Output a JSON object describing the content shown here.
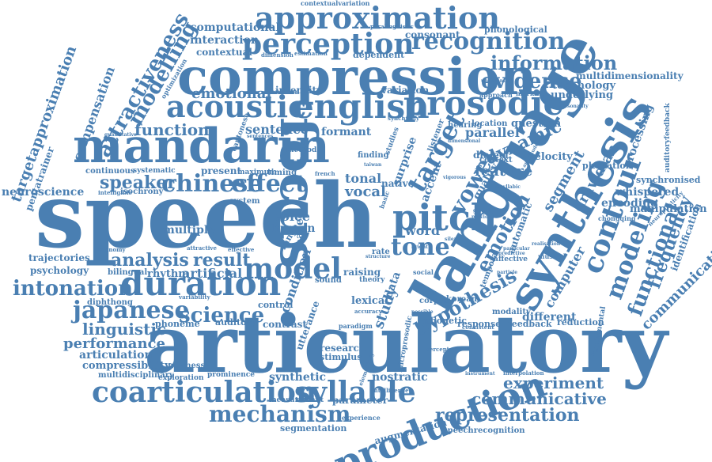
{
  "colors": {
    "word": "#4a7fb2",
    "background": "#ffffff"
  },
  "words": [
    "approximation",
    "compression",
    "mandarin",
    "speech",
    "articulatory",
    "language",
    "focus",
    "synthesis",
    "perception",
    "recognition",
    "information",
    "prosodic",
    "english",
    "acoustic",
    "pitch",
    "duration",
    "model",
    "coarticulation",
    "syllable",
    "production",
    "mechanism",
    "representation",
    "chinese",
    "effect",
    "target",
    "evidence",
    "contour",
    "modeling",
    "intonation",
    "japanese",
    "science",
    "analysis",
    "result",
    "tone",
    "emotion",
    "hypothesis",
    "experiment",
    "communicative",
    "performance",
    "linguistic",
    "vowel",
    "dynamic",
    "feature",
    "speaker",
    "function",
    "emotional",
    "modelling",
    "attractiveness",
    "computational",
    "interaction",
    "contextual",
    "consonant",
    "phonological",
    "multidimensionality",
    "technology",
    "underlying",
    "sentence",
    "formant",
    "parallel",
    "question",
    "surprise",
    "velocity",
    "segment",
    "dravidian",
    "encoding",
    "whispered",
    "functional",
    "frequency",
    "communication",
    "manipulation",
    "identification",
    "synchronised",
    "auditoryfeedback",
    "neuroscience",
    "targetapproximation",
    "compensation",
    "pentatrainer",
    "trajectories",
    "psychology",
    "articulation",
    "compressibility",
    "multidisciplinary",
    "exploration",
    "prominence",
    "synthetic",
    "nostratic",
    "measurement",
    "parameter",
    "segmentation",
    "augmentation",
    "speechrecognition",
    "word",
    "rate",
    "tonal",
    "vocal",
    "native",
    "accent",
    "quality",
    "variation",
    "intensity",
    "dialect",
    "context",
    "processing",
    "phonation",
    "automatic",
    "computer",
    "different",
    "reduction",
    "feedback",
    "response",
    "phonetic",
    "korean",
    "modality",
    "condition",
    "utterance",
    "contrast",
    "control",
    "auditory",
    "phoneme",
    "newness",
    "rhythm",
    "diphthong",
    "bilingual",
    "artificial",
    "multiple",
    "human",
    "voice",
    "range",
    "based",
    "study",
    "data",
    "research",
    "stimulus",
    "paradigm",
    "lexical",
    "corpus",
    "sound",
    "raising",
    "theory",
    "system",
    "present",
    "timing",
    "maximum",
    "continuous",
    "systematic",
    "isochrony",
    "intelligible",
    "economy",
    "experience",
    "intelligence",
    "consistent",
    "perceptual",
    "fundamental",
    "interpolation",
    "chongqing",
    "neuroplasticity",
    "musical",
    "marking",
    "approach",
    "personality",
    "unaccented",
    "location",
    "hearing",
    "finding",
    "studies",
    "method",
    "specific",
    "southern",
    "optimization",
    "quantitative",
    "paralinguistic",
    "contextualvariation",
    "dimension",
    "estimation",
    "dependent",
    "cantonese",
    "synchrony",
    "realisation",
    "elementary",
    "microprosodic",
    "possible",
    "instrument",
    "predictive",
    "affective",
    "particular",
    "particle",
    "temporal",
    "accuracy",
    "structure",
    "variability",
    "attractive",
    "effective",
    "social",
    "bright",
    "silent",
    "french",
    "taiwan",
    "basic",
    "listener",
    "amplitude",
    "disyllabic",
    "previous",
    "sentences",
    "vigorous",
    "global",
    "dimensional"
  ]
}
